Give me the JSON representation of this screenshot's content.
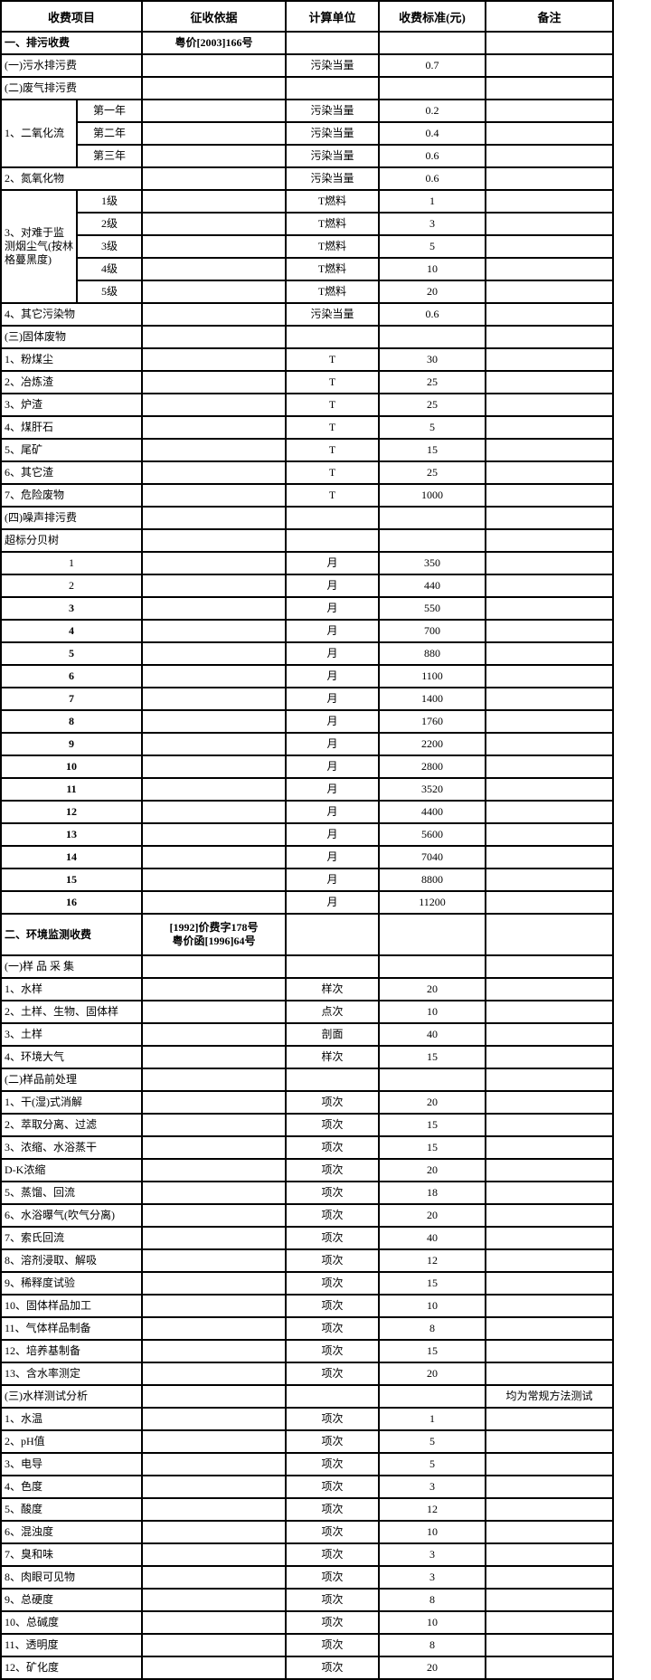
{
  "header": {
    "columns": [
      "收费项目",
      "征收依据",
      "计算单位",
      "收费标准(元)",
      "备注"
    ]
  },
  "rows": [
    {
      "item": "一、排污收费",
      "basis": "粤价[2003]166号",
      "unit": "",
      "std": "",
      "remark": "",
      "cls": "section"
    },
    {
      "item": "(一)污水排污费",
      "basis": "",
      "unit": "污染当量",
      "std": "0.7",
      "remark": "",
      "cls": "normal"
    },
    {
      "item": "(二)废气排污费",
      "basis": "",
      "unit": "",
      "std": "",
      "remark": "",
      "cls": "normal"
    },
    {
      "group": {
        "label": "1、二氧化流",
        "span": 3
      },
      "item": "第一年",
      "basis": "",
      "unit": "污染当量",
      "std": "0.2",
      "remark": "",
      "cls": "normal"
    },
    {
      "cont": true,
      "item": "第二年",
      "basis": "",
      "unit": "污染当量",
      "std": "0.4",
      "remark": "",
      "cls": "normal"
    },
    {
      "cont": true,
      "item": "第三年",
      "basis": "",
      "unit": "污染当量",
      "std": "0.6",
      "remark": "",
      "cls": "normal"
    },
    {
      "item": "2、氮氧化物",
      "basis": "",
      "unit": "污染当量",
      "std": "0.6",
      "remark": "",
      "cls": "normal"
    },
    {
      "group": {
        "label": "3、对难于监测烟尘气(按林格蔓黑度)",
        "span": 5
      },
      "item": "1级",
      "basis": "",
      "unit": "T燃料",
      "std": "1",
      "remark": "",
      "cls": "normal"
    },
    {
      "cont": true,
      "item": "2级",
      "basis": "",
      "unit": "T燃料",
      "std": "3",
      "remark": "",
      "cls": "normal"
    },
    {
      "cont": true,
      "item": "3级",
      "basis": "",
      "unit": "T燃料",
      "std": "5",
      "remark": "",
      "cls": "normal"
    },
    {
      "cont": true,
      "item": "4级",
      "basis": "",
      "unit": "T燃料",
      "std": "10",
      "remark": "",
      "cls": "normal"
    },
    {
      "cont": true,
      "item": "5级",
      "basis": "",
      "unit": "T燃料",
      "std": "20",
      "remark": "",
      "cls": "normal"
    },
    {
      "item": "4、其它污染物",
      "basis": "",
      "unit": "污染当量",
      "std": "0.6",
      "remark": "",
      "cls": "normal"
    },
    {
      "item": "(三)固体废物",
      "basis": "",
      "unit": "",
      "std": "",
      "remark": "",
      "cls": "normal"
    },
    {
      "item": "1、粉煤尘",
      "basis": "",
      "unit": "T",
      "std": "30",
      "remark": "",
      "cls": "normal"
    },
    {
      "item": "2、冶炼渣",
      "basis": "",
      "unit": "T",
      "std": "25",
      "remark": "",
      "cls": "normal"
    },
    {
      "item": "3、炉渣",
      "basis": "",
      "unit": "T",
      "std": "25",
      "remark": "",
      "cls": "normal"
    },
    {
      "item": "4、煤肝石",
      "basis": "",
      "unit": "T",
      "std": "5",
      "remark": "",
      "cls": "normal"
    },
    {
      "item": "5、尾矿",
      "basis": "",
      "unit": "T",
      "std": "15",
      "remark": "",
      "cls": "normal"
    },
    {
      "item": "6、其它渣",
      "basis": "",
      "unit": "T",
      "std": "25",
      "remark": "",
      "cls": "normal"
    },
    {
      "item": "7、危险废物",
      "basis": "",
      "unit": "T",
      "std": "1000",
      "remark": "",
      "cls": "normal"
    },
    {
      "item": "(四)噪声排污费",
      "basis": "",
      "unit": "",
      "std": "",
      "remark": "",
      "cls": "normal"
    },
    {
      "item": "超标分贝树",
      "basis": "",
      "unit": "",
      "std": "",
      "remark": "",
      "cls": "normal"
    },
    {
      "item": "1",
      "basis": "",
      "unit": "月",
      "std": "350",
      "remark": "",
      "cls": "center"
    },
    {
      "item": "2",
      "basis": "",
      "unit": "月",
      "std": "440",
      "remark": "",
      "cls": "center"
    },
    {
      "item": "3",
      "basis": "",
      "unit": "月",
      "std": "550",
      "remark": "",
      "cls": "centerbold"
    },
    {
      "item": "4",
      "basis": "",
      "unit": "月",
      "std": "700",
      "remark": "",
      "cls": "centerbold"
    },
    {
      "item": "5",
      "basis": "",
      "unit": "月",
      "std": "880",
      "remark": "",
      "cls": "centerbold"
    },
    {
      "item": "6",
      "basis": "",
      "unit": "月",
      "std": "1100",
      "remark": "",
      "cls": "centerbold"
    },
    {
      "item": "7",
      "basis": "",
      "unit": "月",
      "std": "1400",
      "remark": "",
      "cls": "centerbold"
    },
    {
      "item": "8",
      "basis": "",
      "unit": "月",
      "std": "1760",
      "remark": "",
      "cls": "centerbold"
    },
    {
      "item": "9",
      "basis": "",
      "unit": "月",
      "std": "2200",
      "remark": "",
      "cls": "centerbold"
    },
    {
      "item": "10",
      "basis": "",
      "unit": "月",
      "std": "2800",
      "remark": "",
      "cls": "centerbold"
    },
    {
      "item": "11",
      "basis": "",
      "unit": "月",
      "std": "3520",
      "remark": "",
      "cls": "centerbold"
    },
    {
      "item": "12",
      "basis": "",
      "unit": "月",
      "std": "4400",
      "remark": "",
      "cls": "centerbold"
    },
    {
      "item": "13",
      "basis": "",
      "unit": "月",
      "std": "5600",
      "remark": "",
      "cls": "centerbold"
    },
    {
      "item": "14",
      "basis": "",
      "unit": "月",
      "std": "7040",
      "remark": "",
      "cls": "centerbold"
    },
    {
      "item": "15",
      "basis": "",
      "unit": "月",
      "std": "8800",
      "remark": "",
      "cls": "centerbold"
    },
    {
      "item": "16",
      "basis": "",
      "unit": "月",
      "std": "11200",
      "remark": "",
      "cls": "centerbold"
    },
    {
      "item": "二、环境监测收费",
      "basis": "[1992]价费字178号\n粤价函[1996]64号",
      "unit": "",
      "std": "",
      "remark": "",
      "cls": "section",
      "h": 46
    },
    {
      "item": "(一)样 品 采 集",
      "basis": "",
      "unit": "",
      "std": "",
      "remark": "",
      "cls": "normal"
    },
    {
      "item": "1、水样",
      "basis": "",
      "unit": "样次",
      "std": "20",
      "remark": "",
      "cls": "normal"
    },
    {
      "item": "2、土样、生物、固体样",
      "basis": "",
      "unit": "点次",
      "std": "10",
      "remark": "",
      "cls": "normal"
    },
    {
      "item": "3、土样",
      "basis": "",
      "unit": "剖面",
      "std": "40",
      "remark": "",
      "cls": "normal"
    },
    {
      "item": "4、环境大气",
      "basis": "",
      "unit": "样次",
      "std": "15",
      "remark": "",
      "cls": "normal"
    },
    {
      "item": "(二)样品前处理",
      "basis": "",
      "unit": "",
      "std": "",
      "remark": "",
      "cls": "normal"
    },
    {
      "item": "1、干(湿)式消解",
      "basis": "",
      "unit": "项次",
      "std": "20",
      "remark": "",
      "cls": "normal"
    },
    {
      "item": "2、萃取分离、过滤",
      "basis": "",
      "unit": "项次",
      "std": "15",
      "remark": "",
      "cls": "normal"
    },
    {
      "item": "3、浓缩、水浴蒸干",
      "basis": "",
      "unit": "项次",
      "std": "15",
      "remark": "",
      "cls": "normal"
    },
    {
      "item": "D-K浓缩",
      "basis": "",
      "unit": "项次",
      "std": "20",
      "remark": "",
      "cls": "normal"
    },
    {
      "item": "5、蒸馏、回流",
      "basis": "",
      "unit": "项次",
      "std": "18",
      "remark": "",
      "cls": "normal"
    },
    {
      "item": "6、水浴曝气(吹气分离)",
      "basis": "",
      "unit": "项次",
      "std": "20",
      "remark": "",
      "cls": "normal"
    },
    {
      "item": "7、索氏回流",
      "basis": "",
      "unit": "项次",
      "std": "40",
      "remark": "",
      "cls": "normal"
    },
    {
      "item": "8、溶剂浸取、解吸",
      "basis": "",
      "unit": "项次",
      "std": "12",
      "remark": "",
      "cls": "normal"
    },
    {
      "item": "9、稀释度试验",
      "basis": "",
      "unit": "项次",
      "std": "15",
      "remark": "",
      "cls": "normal"
    },
    {
      "item": "10、固体样品加工",
      "basis": "",
      "unit": "项次",
      "std": "10",
      "remark": "",
      "cls": "normal"
    },
    {
      "item": "11、气体样品制备",
      "basis": "",
      "unit": "项次",
      "std": "8",
      "remark": "",
      "cls": "normal"
    },
    {
      "item": "12、培养基制备",
      "basis": "",
      "unit": "项次",
      "std": "15",
      "remark": "",
      "cls": "normal"
    },
    {
      "item": "13、含水率测定",
      "basis": "",
      "unit": "项次",
      "std": "20",
      "remark": "",
      "cls": "normal"
    },
    {
      "item": "(三)水样测试分析",
      "basis": "",
      "unit": "",
      "std": "",
      "remark": "均为常规方法测试",
      "cls": "normal"
    },
    {
      "item": "1、水温",
      "basis": "",
      "unit": "项次",
      "std": "1",
      "remark": "",
      "cls": "normal"
    },
    {
      "item": "2、pH值",
      "basis": "",
      "unit": "项次",
      "std": "5",
      "remark": "",
      "cls": "normal"
    },
    {
      "item": "3、电导",
      "basis": "",
      "unit": "项次",
      "std": "5",
      "remark": "",
      "cls": "normal"
    },
    {
      "item": "4、色度",
      "basis": "",
      "unit": "项次",
      "std": "3",
      "remark": "",
      "cls": "normal"
    },
    {
      "item": "5、酸度",
      "basis": "",
      "unit": "项次",
      "std": "12",
      "remark": "",
      "cls": "normal"
    },
    {
      "item": "6、混浊度",
      "basis": "",
      "unit": "项次",
      "std": "10",
      "remark": "",
      "cls": "normal"
    },
    {
      "item": "7、臭和味",
      "basis": "",
      "unit": "项次",
      "std": "3",
      "remark": "",
      "cls": "normal"
    },
    {
      "item": "8、肉眼可见物",
      "basis": "",
      "unit": "项次",
      "std": "3",
      "remark": "",
      "cls": "normal"
    },
    {
      "item": "9、总硬度",
      "basis": "",
      "unit": "项次",
      "std": "8",
      "remark": "",
      "cls": "normal"
    },
    {
      "item": "10、总碱度",
      "basis": "",
      "unit": "项次",
      "std": "10",
      "remark": "",
      "cls": "normal"
    },
    {
      "item": "11、透明度",
      "basis": "",
      "unit": "项次",
      "std": "8",
      "remark": "",
      "cls": "normal"
    },
    {
      "item": "12、矿化度",
      "basis": "",
      "unit": "项次",
      "std": "20",
      "remark": "",
      "cls": "normal"
    }
  ]
}
